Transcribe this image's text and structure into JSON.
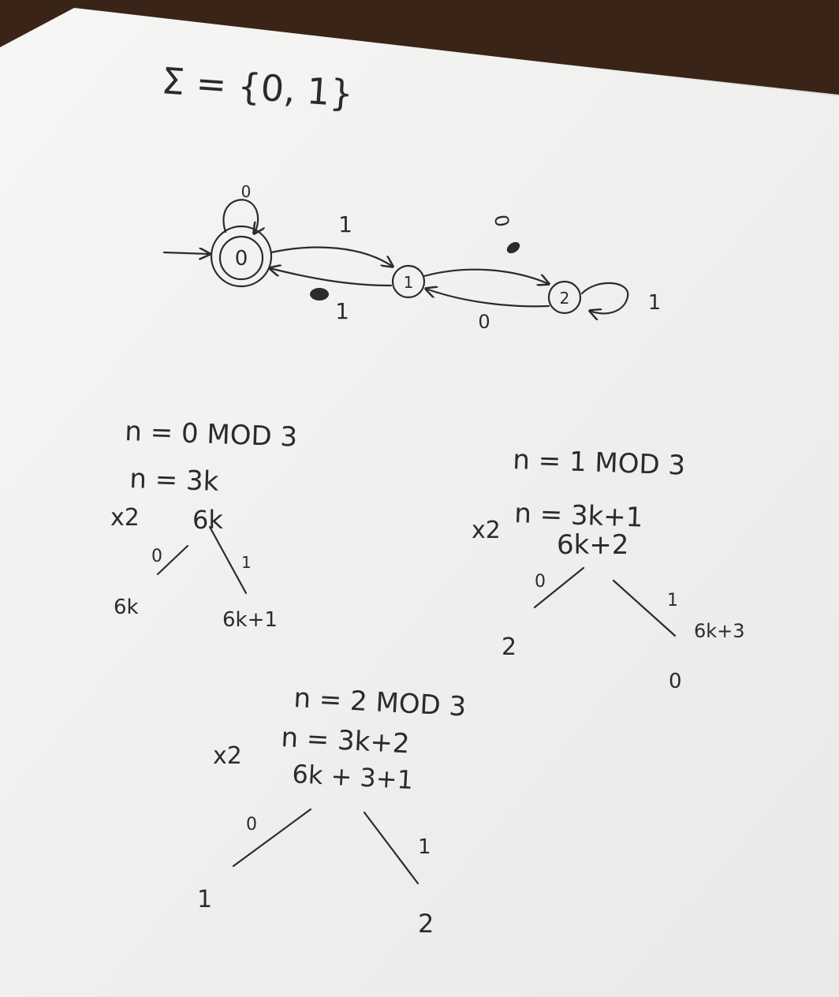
{
  "colors": {
    "table": "#3a2417",
    "paper": "#f3f3f1",
    "ink": "#2b2b2e"
  },
  "alphabet": "Σ = {0, 1}",
  "dfa": {
    "states": [
      "0",
      "1",
      "2"
    ],
    "start_state": "0",
    "accept_state": "0",
    "edges": {
      "q0_loop": "0",
      "q0_to_q1": "1",
      "q1_to_q0": "1",
      "q1_to_q2": "0",
      "q2_to_q1": "0",
      "q2_loop": "1"
    }
  },
  "case0": {
    "heading": "n = 0 MOD 3",
    "eq": "n = 3k",
    "x2": "x2",
    "doubled": "6k",
    "branch0": "0",
    "branch1": "1",
    "result0": "6k",
    "result1": "6k+1"
  },
  "case1": {
    "heading": "n = 1 MOD 3",
    "eq": "n = 3k+1",
    "x2": "x2",
    "doubled": "6k+2",
    "branch0": "0",
    "branch1": "1",
    "result0": "2",
    "result1": "6k+3",
    "result1_mod": "0"
  },
  "case2": {
    "heading": "n = 2 MOD 3",
    "eq": "n = 3k+2",
    "x2": "x2",
    "doubled": "6k + 3+1",
    "branch0": "0",
    "branch1": "1",
    "result0": "1",
    "result1": "2"
  }
}
